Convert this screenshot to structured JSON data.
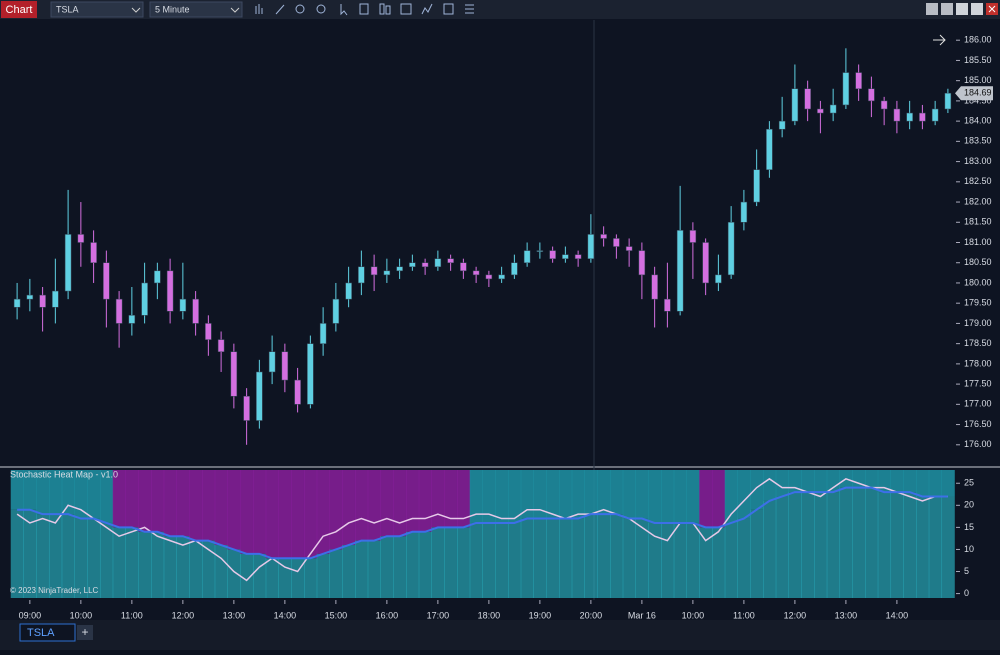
{
  "toolbar": {
    "window_title": "Chart",
    "instrument": "TSLA",
    "interval": "5 Minute"
  },
  "tabs": {
    "active": "TSLA",
    "add": "+"
  },
  "chart_data": [
    {
      "type": "candlestick",
      "up_color": "#5fd0e2",
      "down_color": "#d46fe0",
      "x": [
        0,
        1,
        2,
        3,
        4,
        5,
        6,
        7,
        8,
        9,
        10,
        11,
        12,
        13,
        14,
        15,
        16,
        17,
        18,
        19,
        20,
        21,
        22,
        23,
        24,
        25,
        26,
        27,
        28,
        29,
        30,
        31,
        32,
        33,
        34,
        35,
        36,
        37,
        38,
        39,
        40,
        41,
        42,
        43,
        44,
        45,
        46,
        47,
        48,
        49,
        50,
        51,
        52,
        53,
        54,
        55,
        56,
        57,
        58,
        59,
        60,
        61,
        62,
        63,
        64,
        65,
        66,
        67,
        68,
        69,
        70,
        71,
        72,
        73
      ],
      "open": [
        179.4,
        179.6,
        179.7,
        179.4,
        179.8,
        181.2,
        181.0,
        180.5,
        179.6,
        179.0,
        179.2,
        180.0,
        180.3,
        179.3,
        179.6,
        179.0,
        178.6,
        178.3,
        177.2,
        176.6,
        177.8,
        178.3,
        177.6,
        177.0,
        178.5,
        179.0,
        179.6,
        180.0,
        180.4,
        180.2,
        180.3,
        180.4,
        180.5,
        180.4,
        180.6,
        180.5,
        180.3,
        180.2,
        180.1,
        180.2,
        180.5,
        180.8,
        180.8,
        180.6,
        180.7,
        180.6,
        181.2,
        181.1,
        180.9,
        180.8,
        180.2,
        179.6,
        179.3,
        181.3,
        181.0,
        180.0,
        180.2,
        181.5,
        182.0,
        182.8,
        183.8,
        184.0,
        184.8,
        184.3,
        184.2,
        184.4,
        185.2,
        184.8,
        184.5,
        184.3,
        184.0,
        184.2,
        184.0,
        184.3
      ],
      "high": [
        180.0,
        180.1,
        179.9,
        180.6,
        182.3,
        182.0,
        181.3,
        180.8,
        179.8,
        179.9,
        180.5,
        180.5,
        180.6,
        180.5,
        179.8,
        179.2,
        178.8,
        178.5,
        177.4,
        178.1,
        178.7,
        178.5,
        177.9,
        178.7,
        179.4,
        180.0,
        180.4,
        180.8,
        180.7,
        180.6,
        180.6,
        180.7,
        180.6,
        180.8,
        180.7,
        180.6,
        180.4,
        180.3,
        180.4,
        180.7,
        181.0,
        181.0,
        180.9,
        180.9,
        180.8,
        181.7,
        181.4,
        181.2,
        181.1,
        181.0,
        180.4,
        180.5,
        182.4,
        181.5,
        181.1,
        180.7,
        181.9,
        182.3,
        183.3,
        184.0,
        184.6,
        185.4,
        185.0,
        184.5,
        184.8,
        185.8,
        185.4,
        185.1,
        184.6,
        184.5,
        184.5,
        184.4,
        184.5,
        184.8
      ],
      "low": [
        179.1,
        179.3,
        178.8,
        179.0,
        179.6,
        180.4,
        180.0,
        178.9,
        178.4,
        178.7,
        179.0,
        179.6,
        179.0,
        179.1,
        178.7,
        178.2,
        177.8,
        176.9,
        176.0,
        176.4,
        177.5,
        177.3,
        176.8,
        176.9,
        178.2,
        178.8,
        179.4,
        179.7,
        179.8,
        180.0,
        180.1,
        180.3,
        180.2,
        180.3,
        180.3,
        180.1,
        180.0,
        179.9,
        180.0,
        180.1,
        180.4,
        180.6,
        180.5,
        180.5,
        180.4,
        180.5,
        180.9,
        180.6,
        180.4,
        179.6,
        178.9,
        178.9,
        179.2,
        180.1,
        179.7,
        179.8,
        180.1,
        181.3,
        181.9,
        182.6,
        183.6,
        183.9,
        184.0,
        183.7,
        184.0,
        184.3,
        184.5,
        184.1,
        183.9,
        183.7,
        183.8,
        183.8,
        183.9,
        184.2
      ],
      "close": [
        179.6,
        179.7,
        179.4,
        179.8,
        181.2,
        181.0,
        180.5,
        179.6,
        179.0,
        179.2,
        180.0,
        180.3,
        179.3,
        179.6,
        179.0,
        178.6,
        178.3,
        177.2,
        176.6,
        177.8,
        178.3,
        177.6,
        177.0,
        178.5,
        179.0,
        179.6,
        180.0,
        180.4,
        180.2,
        180.3,
        180.4,
        180.5,
        180.4,
        180.6,
        180.5,
        180.3,
        180.2,
        180.1,
        180.2,
        180.5,
        180.8,
        180.8,
        180.6,
        180.7,
        180.6,
        181.2,
        181.1,
        180.9,
        180.8,
        180.2,
        179.6,
        179.3,
        181.3,
        181.0,
        180.0,
        180.2,
        181.5,
        182.0,
        182.8,
        183.8,
        184.0,
        184.8,
        184.3,
        184.2,
        184.4,
        185.2,
        184.8,
        184.5,
        184.3,
        184.0,
        184.2,
        184.0,
        184.3,
        184.69
      ],
      "last_price": {
        "value": 184.69,
        "label": "184.69"
      },
      "xlim": [
        -0.4,
        73.4
      ],
      "xticks": [
        {
          "value": 1,
          "label": "09:00"
        },
        {
          "value": 5,
          "label": "10:00"
        },
        {
          "value": 9,
          "label": "11:00"
        },
        {
          "value": 13,
          "label": "12:00"
        },
        {
          "value": 17,
          "label": "13:00"
        },
        {
          "value": 21,
          "label": "14:00"
        },
        {
          "value": 25,
          "label": "15:00"
        },
        {
          "value": 29,
          "label": "16:00"
        },
        {
          "value": 33,
          "label": "17:00"
        },
        {
          "value": 37,
          "label": "18:00"
        },
        {
          "value": 41,
          "label": "19:00"
        },
        {
          "value": 45,
          "label": "20:00"
        },
        {
          "value": 49,
          "label": "Mar 16"
        },
        {
          "value": 53,
          "label": "10:00"
        },
        {
          "value": 57,
          "label": "11:00"
        },
        {
          "value": 61,
          "label": "12:00"
        },
        {
          "value": 65,
          "label": "13:00"
        },
        {
          "value": 69,
          "label": "14:00"
        }
      ],
      "ylim": [
        175.55,
        186.45
      ],
      "yticks": [
        {
          "value": 176,
          "label": "176.00"
        },
        {
          "value": 176.5,
          "label": "176.50"
        },
        {
          "value": 177,
          "label": "177.00"
        },
        {
          "value": 177.5,
          "label": "177.50"
        },
        {
          "value": 178,
          "label": "178.00"
        },
        {
          "value": 178.5,
          "label": "178.50"
        },
        {
          "value": 179,
          "label": "179.00"
        },
        {
          "value": 179.5,
          "label": "179.50"
        },
        {
          "value": 180,
          "label": "180.00"
        },
        {
          "value": 180.5,
          "label": "180.50"
        },
        {
          "value": 181,
          "label": "181.00"
        },
        {
          "value": 181.5,
          "label": "181.50"
        },
        {
          "value": 182,
          "label": "182.00"
        },
        {
          "value": 182.5,
          "label": "182.50"
        },
        {
          "value": 183,
          "label": "183.00"
        },
        {
          "value": 183.5,
          "label": "183.50"
        },
        {
          "value": 184,
          "label": "184.00"
        },
        {
          "value": 184.5,
          "label": "184.50"
        },
        {
          "value": 185,
          "label": "185.00"
        },
        {
          "value": 185.5,
          "label": "185.50"
        },
        {
          "value": 186,
          "label": "186.00"
        }
      ]
    },
    {
      "type": "line",
      "title": "Stochastic Heat Map - v1.0",
      "annotation": "© 2023 NinjaTrader, LLC",
      "heat_low_color": "#8a1f9c",
      "heat_high_color": "#1f93a6",
      "heat_base_color": "#2bbfd0",
      "series": [
        {
          "color": "#e6c9e8",
          "values": [
            18,
            16,
            17,
            16,
            20,
            19,
            17,
            15,
            13,
            14,
            15,
            13,
            12,
            11,
            12,
            10,
            8,
            5,
            3,
            6,
            8,
            6,
            5,
            9,
            13,
            14,
            16,
            17,
            16,
            17,
            16,
            17,
            17,
            18,
            17,
            17,
            18,
            18,
            17,
            17,
            19,
            19,
            18,
            17,
            18,
            18,
            19,
            18,
            17,
            15,
            13,
            12,
            16,
            16,
            12,
            14,
            18,
            21,
            24,
            26,
            24,
            24,
            23,
            22,
            24,
            26,
            25,
            24,
            24,
            23,
            22,
            21,
            22,
            22
          ]
        },
        {
          "color": "#3d6fe8",
          "values": [
            19,
            19,
            18,
            18,
            18,
            17,
            17,
            16,
            15,
            15,
            14,
            14,
            13,
            13,
            12,
            12,
            11,
            10,
            9,
            9,
            8,
            8,
            8,
            8,
            9,
            10,
            11,
            12,
            12,
            13,
            13,
            14,
            14,
            15,
            15,
            15,
            16,
            16,
            16,
            16,
            17,
            17,
            17,
            17,
            17,
            18,
            18,
            18,
            17,
            17,
            16,
            16,
            16,
            16,
            15,
            15,
            16,
            17,
            19,
            21,
            22,
            23,
            23,
            23,
            23,
            24,
            24,
            24,
            23,
            23,
            23,
            22,
            22,
            22
          ]
        }
      ],
      "ylim": [
        -1,
        28
      ],
      "yticks": [
        0,
        5,
        10,
        15,
        20,
        25
      ]
    }
  ]
}
